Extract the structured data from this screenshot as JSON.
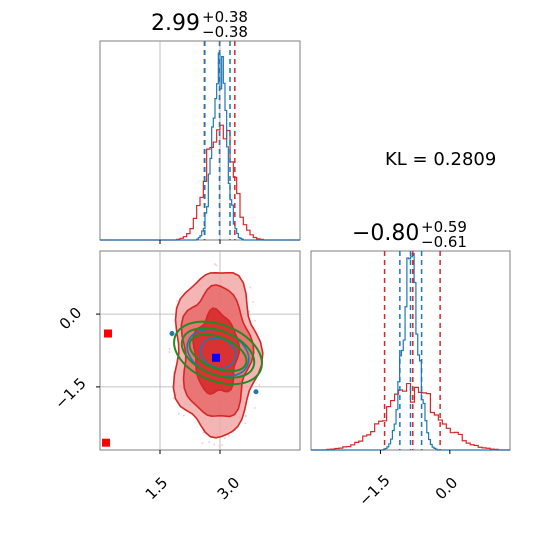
{
  "chart_data": {
    "type": "corner",
    "parameters": [
      {
        "title_main": "2.99",
        "title_plus": "+0.38",
        "title_minus": "−0.38",
        "median": 2.99,
        "err_plus": 0.38,
        "err_minus": 0.38
      },
      {
        "title_main": "−0.80",
        "title_plus": "+0.59",
        "title_minus": "−0.61",
        "median": -0.8,
        "err_plus": 0.59,
        "err_minus": 0.61
      }
    ],
    "annotation": "KL = 0.2809",
    "axes": {
      "x0": {
        "range": [
          0.0,
          5.0
        ],
        "ticks": [
          1.5,
          3.0
        ],
        "tick_labels": [
          "1.5",
          "3.0"
        ]
      },
      "x1": {
        "range": [
          -3.0,
          1.3
        ],
        "ticks": [
          -1.5,
          0.0
        ],
        "tick_labels": [
          "−1.5",
          "0.0"
        ]
      },
      "y1": {
        "range": [
          -2.8,
          1.3
        ],
        "ticks": [
          0.0,
          -1.5
        ],
        "tick_labels": [
          "0.0",
          "−1.5"
        ]
      }
    },
    "marginal_x0": {
      "red_quantiles": [
        2.61,
        2.99,
        3.37
      ],
      "blue_quantiles": [
        2.62,
        2.99,
        3.25
      ],
      "blue_hist": {
        "center": 2.99,
        "sigma": 0.17,
        "peak": 0.92
      },
      "red_hist": {
        "center": 2.99,
        "sigma": 0.32,
        "peak": 0.6
      }
    },
    "marginal_x1": {
      "red_quantiles": [
        -1.41,
        -0.8,
        -0.21
      ],
      "blue_quantiles": [
        -1.08,
        -0.85,
        -0.61
      ],
      "blue_hist": {
        "center": -0.85,
        "sigma": 0.17,
        "peak": 0.9
      },
      "red_hist": {
        "center": -0.8,
        "sigma": 0.6,
        "peak": 0.29
      }
    },
    "joint": {
      "red_contour_center": [
        2.9,
        -0.8
      ],
      "red_contour_widths": [
        0.55,
        0.85,
        1.05
      ],
      "red_contour_heights": [
        0.85,
        1.35,
        1.7
      ],
      "blue_marker": [
        2.9,
        -0.9
      ],
      "green_ellipse_center": [
        2.95,
        -0.8
      ],
      "red_outlier_markers": [
        [
          0.2,
          -0.4
        ],
        [
          0.15,
          -2.65
        ]
      ],
      "blue_dots": [
        [
          1.8,
          -0.4
        ],
        [
          3.9,
          -1.6
        ]
      ]
    },
    "colors": {
      "red": "#d62728",
      "red_fill_light": "#f2a8a8",
      "red_fill_mid": "#e86a6a",
      "blue": "#1f77b4",
      "green": "#228b22",
      "marker_blue": "#0000ff",
      "marker_red": "#ff0000",
      "grid": "#b0b0b0"
    }
  }
}
